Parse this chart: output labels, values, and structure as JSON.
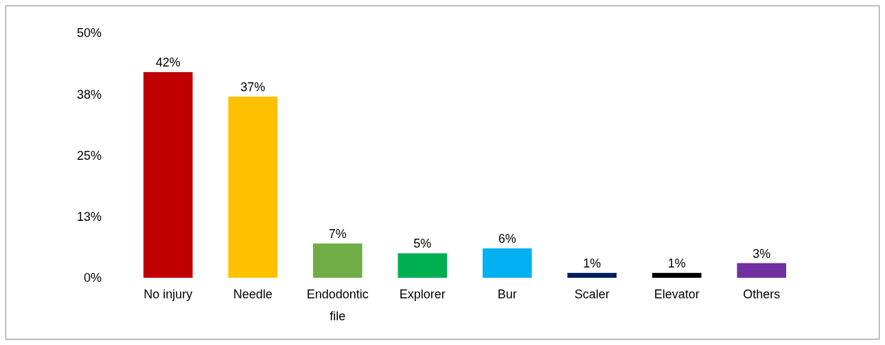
{
  "chart_data": {
    "type": "bar",
    "categories": [
      "No injury",
      "Needle",
      "Endodontic file",
      "Explorer",
      "Bur",
      "Scaler",
      "Elevator",
      "Others"
    ],
    "values": [
      42,
      37,
      7,
      5,
      6,
      1,
      1,
      3
    ],
    "colors": [
      "#c00000",
      "#ffc000",
      "#70ad47",
      "#00b050",
      "#00b0f0",
      "#002060",
      "#000000",
      "#7030a0"
    ],
    "value_labels": [
      "42%",
      "37%",
      "7%",
      "5%",
      "6%",
      "1%",
      "1%",
      "3%"
    ],
    "ylim": [
      0,
      50
    ],
    "yticks": [
      {
        "value": 0,
        "label": "0%"
      },
      {
        "value": 12.5,
        "label": "13%"
      },
      {
        "value": 25,
        "label": "25%"
      },
      {
        "value": 37.5,
        "label": "38%"
      },
      {
        "value": 50,
        "label": "50%"
      }
    ],
    "grid": false
  }
}
